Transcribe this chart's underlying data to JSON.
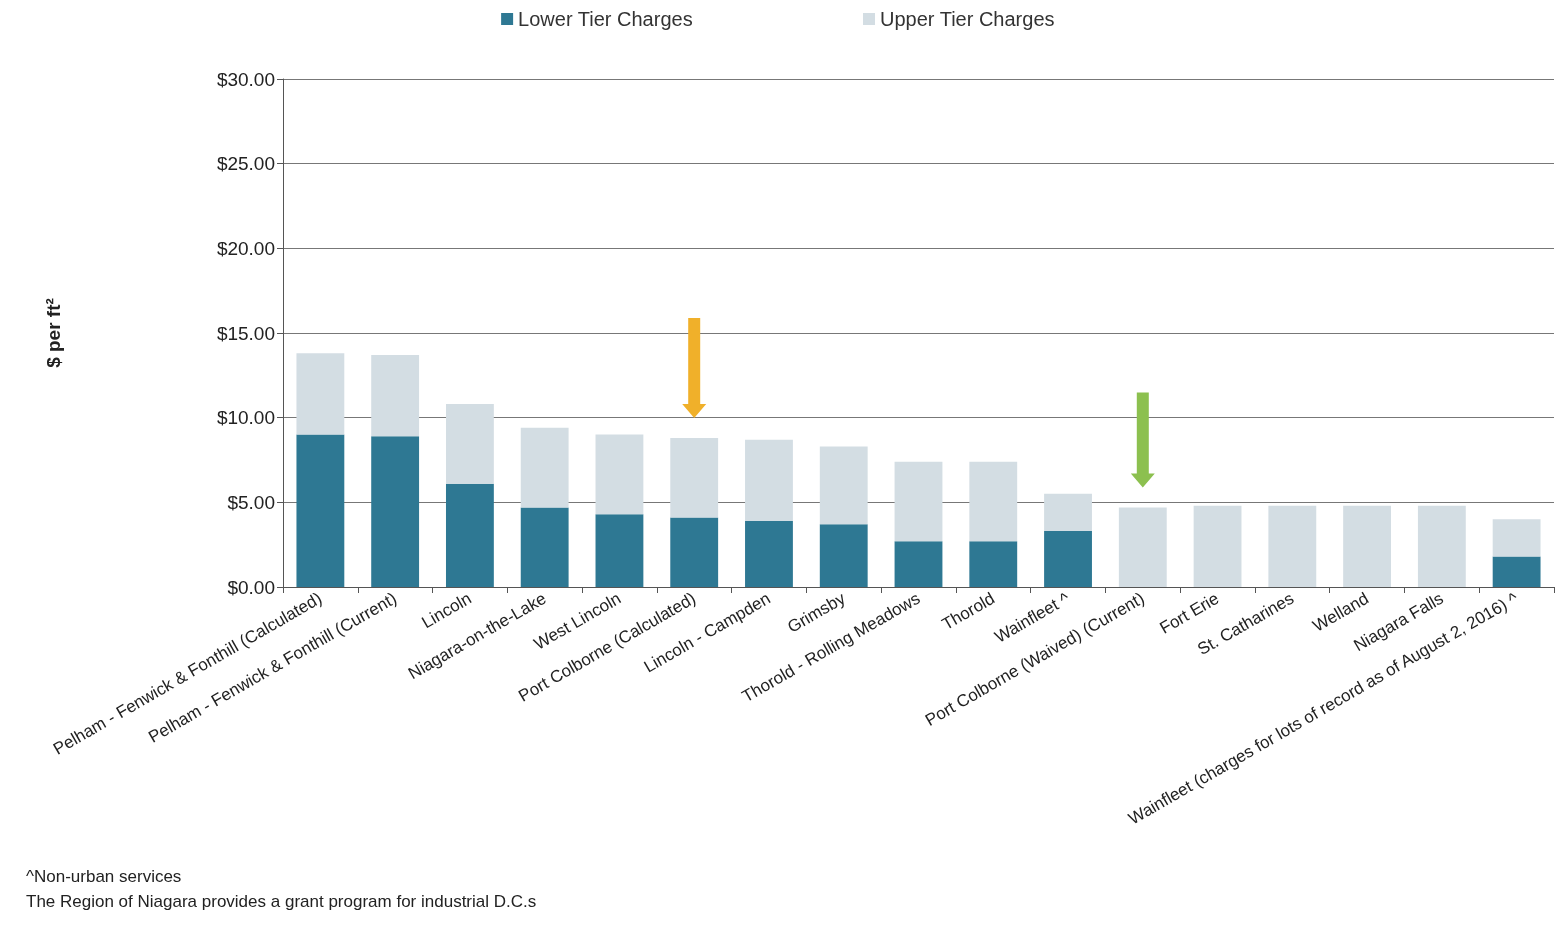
{
  "chart_data": {
    "type": "bar",
    "stacked": true,
    "ylabel": "$ per ft²",
    "categories": [
      "Pelham - Fenwick & Fonthill (Calculated)",
      "Pelham - Fenwick & Fonthill (Current)",
      "Lincoln",
      "Niagara-on-the-Lake",
      "West Lincoln",
      "Port Colborne (Calculated)",
      "Lincoln - Campden",
      "Grimsby",
      "Thorold - Rolling Meadows",
      "Thorold",
      "Wainfleet ^",
      "Port Colborne (Waived) (Current)",
      "Fort Erie",
      "St. Catharines",
      "Welland",
      "Niagara Falls",
      "Wainfleet (charges for lots of record as of August 2, 2016) ^"
    ],
    "series": [
      {
        "name": "Lower Tier Charges",
        "color": "#2e7893",
        "values": [
          9.0,
          8.9,
          6.1,
          4.7,
          4.3,
          4.1,
          3.9,
          3.7,
          2.7,
          2.7,
          3.3,
          0,
          0,
          0,
          0,
          0,
          1.8
        ]
      },
      {
        "name": "Upper Tier Charges",
        "color": "#d3dde3",
        "values": [
          4.8,
          4.8,
          4.7,
          4.7,
          4.7,
          4.7,
          4.8,
          4.6,
          4.7,
          4.7,
          2.2,
          4.7,
          4.8,
          4.8,
          4.8,
          4.8,
          2.2
        ]
      }
    ],
    "ylim": [
      0,
      30
    ],
    "yticks": [
      {
        "value": 0,
        "label": "$0.00"
      },
      {
        "value": 5,
        "label": "$5.00"
      },
      {
        "value": 10,
        "label": "$10.00"
      },
      {
        "value": 15,
        "label": "$15.00"
      },
      {
        "value": 20,
        "label": "$20.00"
      },
      {
        "value": 25,
        "label": "$25.00"
      },
      {
        "value": 30,
        "label": "$30.00"
      }
    ],
    "grid": "y",
    "legend": "top",
    "annotations": [
      "^Non-urban services",
      "The Region of Niagara provides a grant program for industrial D.C.s"
    ]
  }
}
